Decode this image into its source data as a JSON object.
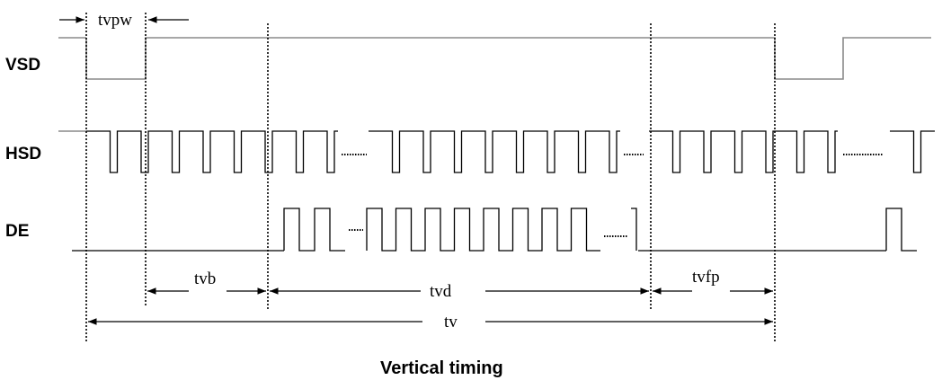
{
  "signals": {
    "vsd": "VSD",
    "hsd": "HSD",
    "de": "DE"
  },
  "params": {
    "tvpw": "tvpw",
    "tvb": "tvb",
    "tvd": "tvd",
    "tvfp": "tvfp",
    "tv": "tv"
  },
  "caption": "Vertical timing"
}
